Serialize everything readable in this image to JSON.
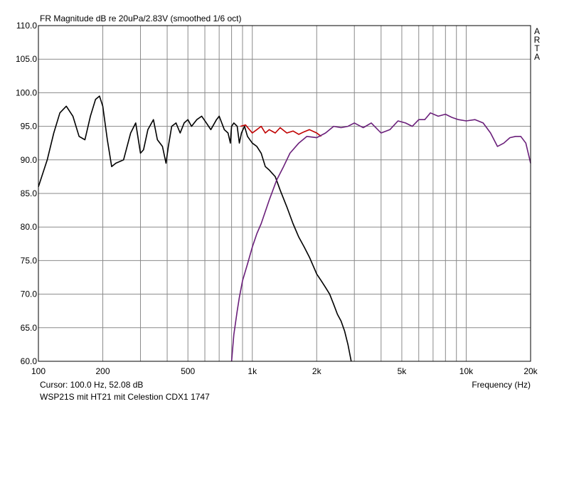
{
  "chart_data": {
    "type": "line",
    "title": "FR Magnitude dB re 20uPa/2.83V (smoothed 1/6 oct)",
    "watermark": [
      "A",
      "R",
      "T",
      "A"
    ],
    "xlabel": "Frequency (Hz)",
    "x_scale": "log",
    "xlim": [
      100,
      20000
    ],
    "ylim": [
      60,
      110
    ],
    "grid": true,
    "y_ticks": [
      110,
      105,
      100,
      95,
      90,
      85,
      80,
      75,
      70,
      65,
      60
    ],
    "y_tick_labels": [
      "110.0",
      "105.0",
      "100.0",
      "95.0",
      "90.0",
      "85.0",
      "80.0",
      "75.0",
      "70.0",
      "65.0",
      "60.0"
    ],
    "x_grid": [
      100,
      200,
      300,
      400,
      500,
      600,
      700,
      800,
      900,
      1000,
      2000,
      3000,
      4000,
      5000,
      6000,
      7000,
      8000,
      9000,
      10000,
      20000
    ],
    "x_ticks": [
      100,
      200,
      500,
      1000,
      2000,
      5000,
      10000,
      20000
    ],
    "x_tick_labels": [
      "100",
      "200",
      "500",
      "1k",
      "2k",
      "5k",
      "10k",
      "20k"
    ],
    "cursor_text": "Cursor: 100.0 Hz, 52.08 dB",
    "note": "WSP21S mit HT21 mit Celestion CDX1 1747",
    "series": [
      {
        "color": "#000000",
        "x": [
          100,
          110,
          118,
          126,
          135,
          145,
          155,
          165,
          175,
          185,
          193,
          200,
          210,
          220,
          230,
          250,
          270,
          285,
          300,
          310,
          325,
          345,
          360,
          380,
          395,
          405,
          420,
          440,
          460,
          480,
          500,
          520,
          550,
          580,
          610,
          640,
          680,
          700,
          740,
          770,
          790,
          800,
          820,
          850,
          870,
          890,
          920,
          950,
          1000,
          1050,
          1100,
          1150,
          1200,
          1280,
          1350,
          1450,
          1550,
          1650,
          1750,
          1850,
          2000,
          2100,
          2200,
          2300,
          2400,
          2500,
          2600,
          2700,
          2800,
          2900
        ],
        "y": [
          86,
          90,
          94,
          97,
          98,
          96.5,
          93.5,
          93,
          96.5,
          99,
          99.5,
          98,
          93,
          89,
          89.5,
          90,
          94,
          95.5,
          91,
          91.5,
          94.5,
          96,
          93,
          92,
          89.5,
          92,
          95,
          95.5,
          94,
          95.5,
          96,
          95,
          96,
          96.5,
          95.5,
          94.5,
          96,
          96.5,
          94.5,
          94,
          92.5,
          95,
          95.5,
          95,
          92.5,
          94,
          95,
          93.5,
          92.5,
          92,
          91,
          89,
          88.5,
          87.5,
          85.5,
          83,
          80.5,
          78.5,
          77,
          75.5,
          73,
          72,
          71,
          70,
          68.5,
          67,
          66,
          64.5,
          62.5,
          60
        ]
      },
      {
        "color": "#c00000",
        "x": [
          880,
          930,
          1000,
          1050,
          1100,
          1150,
          1200,
          1280,
          1350,
          1450,
          1550,
          1650,
          1750,
          1850,
          2000,
          2100
        ],
        "y": [
          95,
          95.2,
          94,
          94.5,
          95,
          94,
          94.5,
          94,
          94.8,
          94,
          94.3,
          93.8,
          94.2,
          94.5,
          94,
          93.5
        ]
      },
      {
        "color": "#6a1f7a",
        "x": [
          800,
          820,
          850,
          870,
          900,
          950,
          1000,
          1050,
          1100,
          1200,
          1300,
          1400,
          1500,
          1650,
          1800,
          2000,
          2200,
          2400,
          2600,
          2800,
          3000,
          3300,
          3600,
          4000,
          4400,
          4800,
          5200,
          5600,
          6000,
          6400,
          6800,
          7400,
          8000,
          8600,
          9200,
          10000,
          11000,
          12000,
          13000,
          14000,
          15000,
          16000,
          17000,
          18000,
          19000,
          20000
        ],
        "y": [
          60,
          64,
          67.5,
          69.5,
          72,
          74.5,
          77,
          79,
          80.5,
          84,
          87,
          89,
          91,
          92.5,
          93.5,
          93.3,
          94,
          95,
          94.8,
          95,
          95.5,
          94.8,
          95.5,
          94,
          94.5,
          95.8,
          95.5,
          95,
          96,
          96,
          97,
          96.5,
          96.8,
          96.3,
          96,
          95.8,
          96,
          95.5,
          94,
          92,
          92.5,
          93.3,
          93.5,
          93.5,
          92.5,
          89.5
        ]
      }
    ]
  }
}
